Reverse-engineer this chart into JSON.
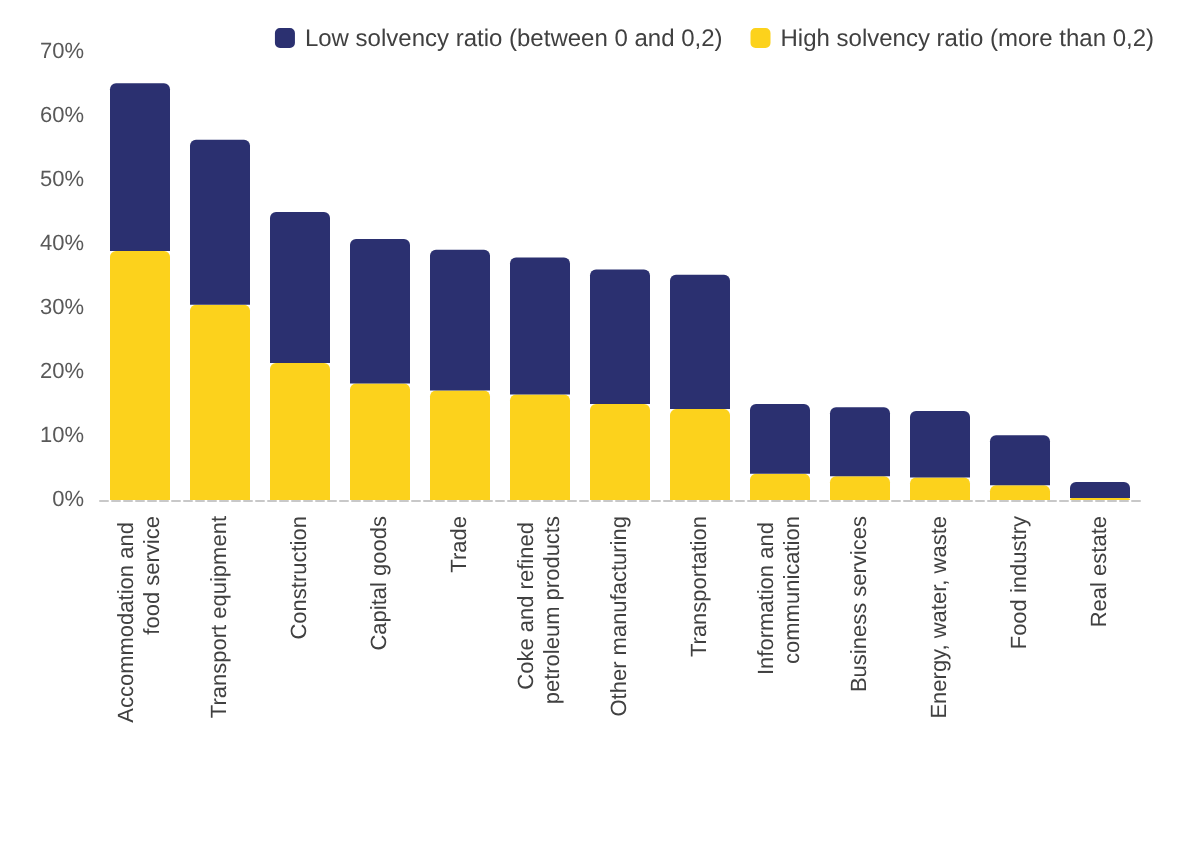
{
  "chart_data": {
    "type": "bar",
    "stacked": true,
    "categories": [
      "Accommodation and food service",
      "Transport equipment",
      "Construction",
      "Capital goods",
      "Trade",
      "Coke and refined petroleum products",
      "Other manufacturing",
      "Transportation",
      "Information and communication",
      "Business services",
      "Energy, water, waste",
      "Food industry",
      "Real estate"
    ],
    "series": [
      {
        "name": "High solvency ratio (more than 0,2)",
        "color": "#fcd21c",
        "values": [
          38.9,
          30.5,
          21.4,
          18.2,
          17.1,
          16.5,
          15.0,
          14.2,
          4.1,
          3.7,
          3.5,
          2.3,
          0.3
        ]
      },
      {
        "name": "Low solvency ratio (between 0 and 0,2)",
        "color": "#2b3070",
        "values": [
          26.2,
          25.8,
          23.6,
          22.6,
          22.0,
          21.4,
          21.0,
          21.0,
          10.9,
          10.8,
          10.4,
          7.8,
          2.5
        ]
      }
    ],
    "ylim": [
      0,
      70
    ],
    "yticks": [
      {
        "value": 0,
        "label": "0%"
      },
      {
        "value": 10,
        "label": "10%"
      },
      {
        "value": 20,
        "label": "20%"
      },
      {
        "value": 30,
        "label": "30%"
      },
      {
        "value": 40,
        "label": "40%"
      },
      {
        "value": 50,
        "label": "50%"
      },
      {
        "value": 60,
        "label": "60%"
      },
      {
        "value": 70,
        "label": "70%"
      }
    ],
    "grid": false,
    "legend": "top right"
  }
}
